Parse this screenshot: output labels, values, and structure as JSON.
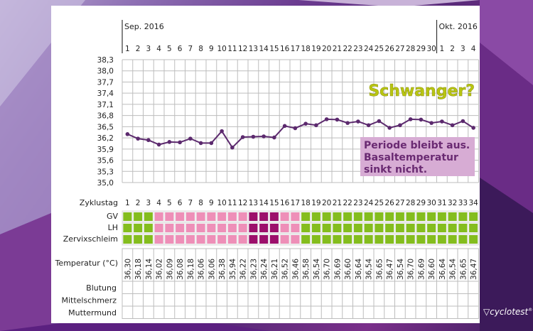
{
  "chart_data": {
    "type": "line",
    "months": [
      {
        "label": "Sep. 2016",
        "start_day_index": 0
      },
      {
        "label": "Okt. 2016",
        "start_day_index": 30
      }
    ],
    "date_labels": [
      "1",
      "2",
      "3",
      "4",
      "5",
      "6",
      "7",
      "8",
      "9",
      "10",
      "11",
      "12",
      "13",
      "14",
      "15",
      "16",
      "17",
      "18",
      "19",
      "20",
      "21",
      "22",
      "23",
      "24",
      "25",
      "26",
      "27",
      "28",
      "29",
      "30",
      "1",
      "2",
      "3",
      "4"
    ],
    "yticks": [
      "38,3",
      "38,0",
      "37,7",
      "37,4",
      "37,1",
      "36,8",
      "36,5",
      "36,2",
      "35,9",
      "35,6",
      "35,3",
      "35,0"
    ],
    "ylim": [
      35.0,
      38.3
    ],
    "grid": true,
    "cycle_label": "Zyklustag",
    "cycle_days": [
      1,
      2,
      3,
      4,
      5,
      6,
      7,
      8,
      9,
      10,
      11,
      12,
      13,
      14,
      15,
      16,
      17,
      18,
      19,
      20,
      21,
      22,
      23,
      24,
      25,
      26,
      27,
      28,
      29,
      30,
      31,
      32,
      33,
      34
    ],
    "temperature_label": "Temperatur (°C)",
    "temperatures": [
      "36,30",
      "36,18",
      "36,14",
      "36,02",
      "36,09",
      "36,08",
      "36,18",
      "36,06",
      "36,06",
      "36,38",
      "35,94",
      "36,22",
      "36,23",
      "36,24",
      "36,21",
      "36,52",
      "36,46",
      "36,58",
      "36,54",
      "36,70",
      "36,69",
      "36,60",
      "36,64",
      "36,54",
      "36,65",
      "36,47",
      "36,54",
      "36,70",
      "36,69",
      "36,60",
      "36,64",
      "36,54",
      "36,65",
      "36,47"
    ],
    "temperature_values": [
      36.3,
      36.18,
      36.14,
      36.02,
      36.09,
      36.08,
      36.18,
      36.06,
      36.06,
      36.38,
      35.94,
      36.22,
      36.23,
      36.24,
      36.21,
      36.52,
      36.46,
      36.58,
      36.54,
      36.7,
      36.69,
      36.6,
      36.64,
      36.54,
      36.65,
      36.47,
      36.54,
      36.7,
      36.69,
      36.6,
      36.64,
      36.54,
      36.65,
      36.47
    ],
    "line_color": "#5c2a6e",
    "indicator_rows": [
      "GV",
      "LH",
      "Zervixschleim"
    ],
    "indicator_status": [
      "g",
      "g",
      "g",
      "p",
      "p",
      "p",
      "p",
      "p",
      "p",
      "p",
      "p",
      "p",
      "m",
      "m",
      "m",
      "p",
      "p",
      "g",
      "g",
      "g",
      "g",
      "g",
      "g",
      "g",
      "g",
      "g",
      "g",
      "g",
      "g",
      "g",
      "g",
      "g",
      "g",
      "g"
    ],
    "status_colors": {
      "g": "#84bd1e",
      "p": "#ee8fb8",
      "m": "#9c0f6b"
    },
    "extra_rows": [
      "Blutung",
      "Mittelschmerz",
      "Muttermund"
    ],
    "annotations": {
      "headline": "Schwanger?",
      "headline_color": "#b8c512",
      "note_lines": [
        "Periode bleibt aus.",
        "Basaltemperatur",
        "sinkt nicht."
      ],
      "note_bg": "#d7acd4",
      "note_color": "#6a2a72"
    }
  },
  "brand": {
    "logo": "cyclotest"
  }
}
